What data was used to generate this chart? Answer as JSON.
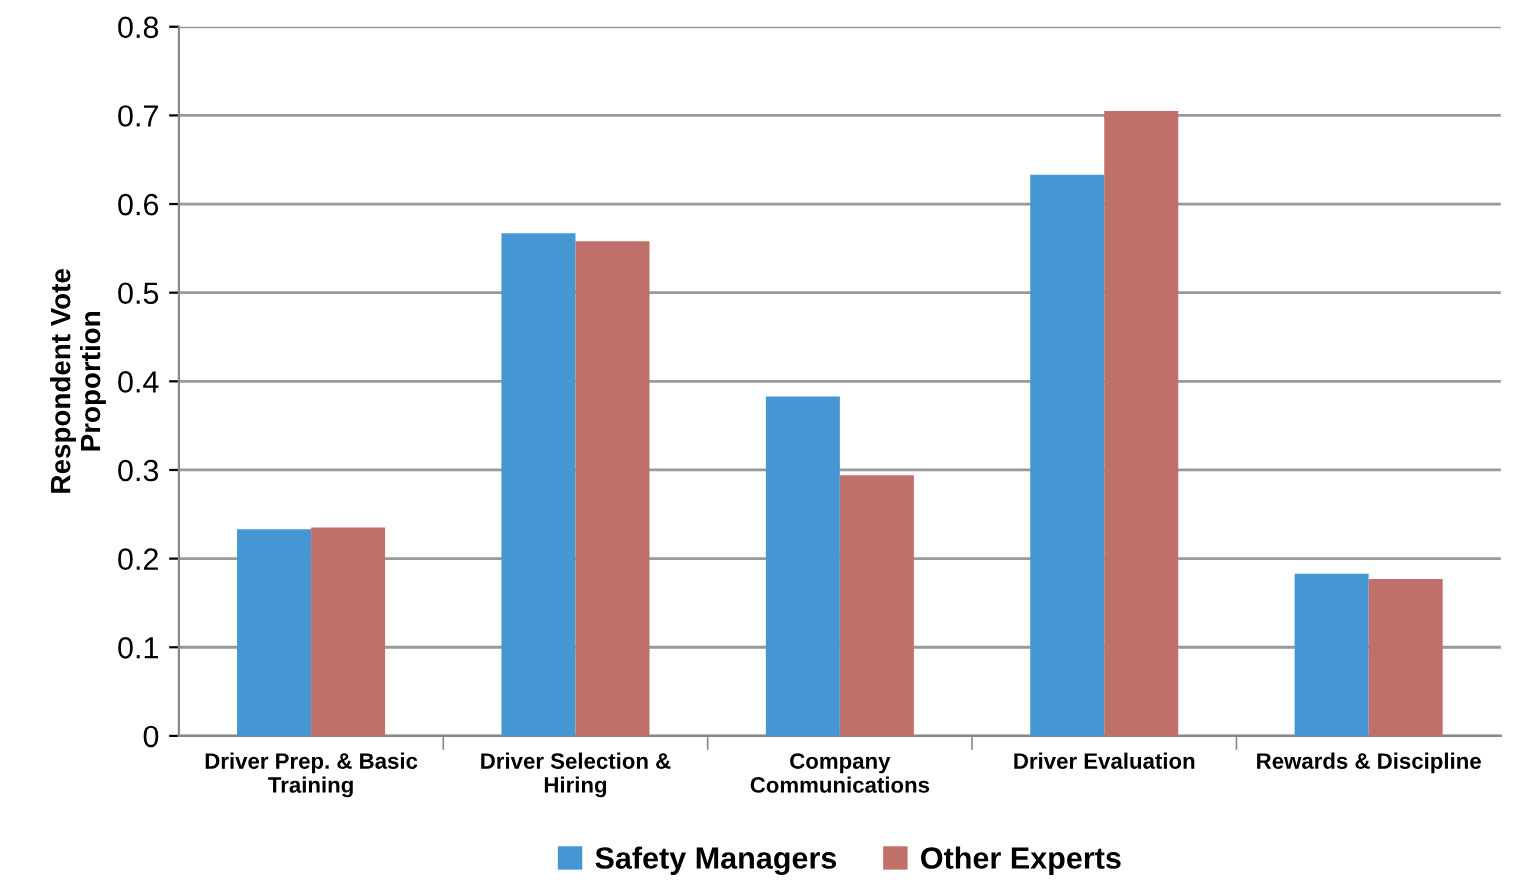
{
  "chart_data": {
    "type": "bar",
    "ylabel": "Respondent Vote\nProportion",
    "categories": [
      "Driver Prep. & Basic\nTraining",
      "Driver Selection &\nHiring",
      "Company\nCommunications",
      "Driver Evaluation",
      "Rewards & Discipline"
    ],
    "series": [
      {
        "name": "Safety Managers",
        "color": "#4596d2",
        "values": [
          0.233,
          0.567,
          0.383,
          0.633,
          0.183
        ]
      },
      {
        "name": "Other Experts",
        "color": "#c0706a",
        "values": [
          0.235,
          0.558,
          0.294,
          0.705,
          0.177
        ]
      }
    ],
    "ylim": [
      0,
      0.8
    ],
    "yticks": [
      0,
      0.1,
      0.2,
      0.3,
      0.4,
      0.5,
      0.6,
      0.7,
      0.8
    ],
    "grid": "y",
    "legend": "bottom"
  }
}
